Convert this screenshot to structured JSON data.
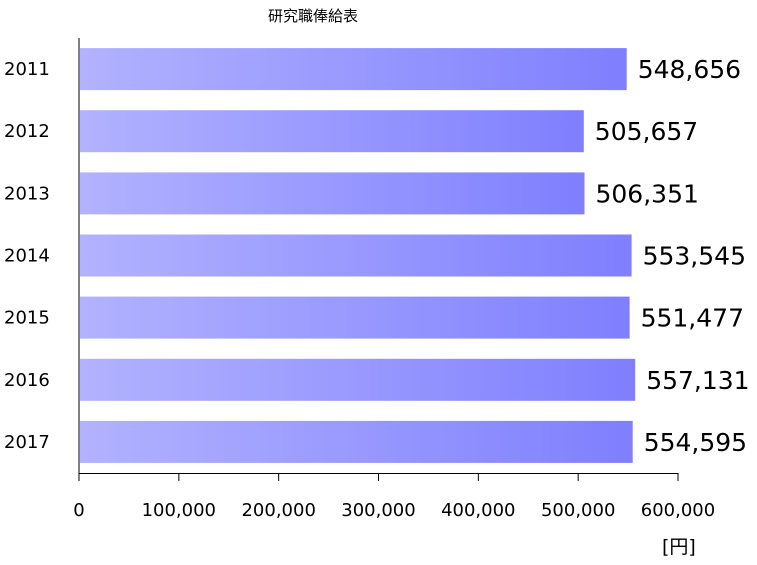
{
  "chart_data": {
    "type": "bar",
    "orientation": "horizontal",
    "title": "研究職俸給表",
    "categories": [
      "2011",
      "2012",
      "2013",
      "2014",
      "2015",
      "2016",
      "2017"
    ],
    "values": [
      548656,
      505657,
      506351,
      553545,
      551477,
      557131,
      554595
    ],
    "value_labels": [
      "548,656",
      "505,657",
      "506,351",
      "553,545",
      "551,477",
      "557,131",
      "554,595"
    ],
    "xlim": [
      0,
      600000
    ],
    "x_ticks": [
      0,
      100000,
      200000,
      300000,
      400000,
      500000,
      600000
    ],
    "x_tick_labels": [
      "0",
      "100,000",
      "200,000",
      "300,000",
      "400,000",
      "500,000",
      "600,000"
    ],
    "unit_label": "[円]",
    "grid": false,
    "legend": "none",
    "bar_gradient": [
      "#b2b2ff",
      "#7f7fff"
    ]
  }
}
